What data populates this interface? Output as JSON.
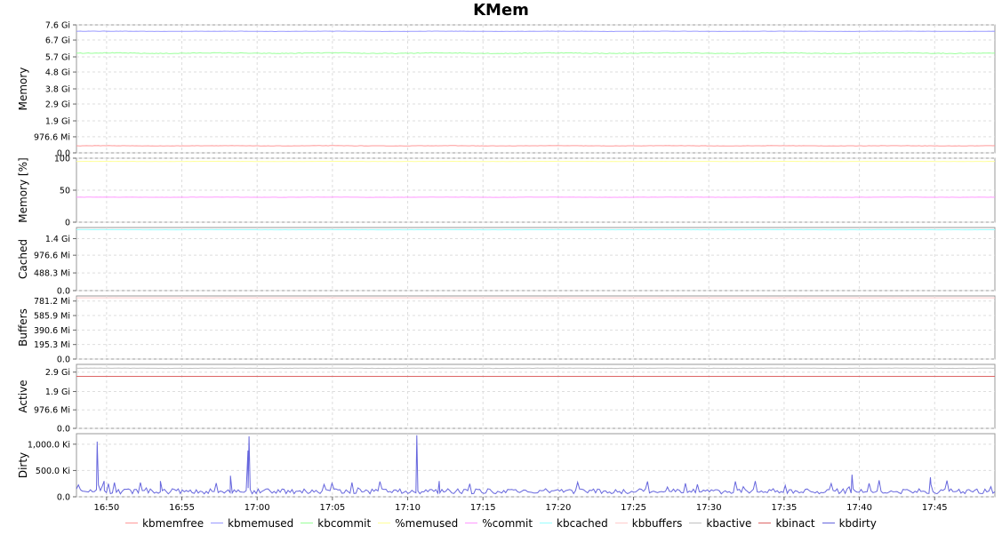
{
  "chart_data": {
    "type": "line",
    "title": "KMem",
    "x_ticks": [
      "16:50",
      "16:55",
      "17:00",
      "17:05",
      "17:10",
      "17:15",
      "17:20",
      "17:25",
      "17:30",
      "17:35",
      "17:40",
      "17:45"
    ],
    "x_range": [
      "16:48",
      "17:49"
    ],
    "grid": true,
    "legend_position": "bottom",
    "legend": [
      {
        "name": "kbmemfree",
        "color": "#ff9999"
      },
      {
        "name": "kbmemused",
        "color": "#9999ff"
      },
      {
        "name": "kbcommit",
        "color": "#99ff99"
      },
      {
        "name": "%memused",
        "color": "#ffff99"
      },
      {
        "name": "%commit",
        "color": "#ff99ff"
      },
      {
        "name": "kbcached",
        "color": "#99ffff"
      },
      {
        "name": "kbbuffers",
        "color": "#ffcccc"
      },
      {
        "name": "kbactive",
        "color": "#c0c0c0"
      },
      {
        "name": "kbinact",
        "color": "#dd6666"
      },
      {
        "name": "kbdirty",
        "color": "#6666dd"
      }
    ],
    "panels": [
      {
        "ylabel": "Memory",
        "ylim": [
          0,
          7.6
        ],
        "unit": "GiB",
        "tick_values": [
          0,
          0.9537,
          1.9,
          2.9,
          3.8,
          4.8,
          5.7,
          6.7,
          7.6
        ],
        "tick_labels": [
          "0.0",
          "976.6 Mi",
          "1.9 Gi",
          "2.9 Gi",
          "3.8 Gi",
          "4.8 Gi",
          "5.7 Gi",
          "6.7 Gi",
          "7.6 Gi"
        ],
        "series": [
          {
            "name": "kbmemused",
            "color": "#9999ff",
            "level": 7.22,
            "jitter": 0.02
          },
          {
            "name": "kbcommit",
            "color": "#99ff99",
            "level": 5.92,
            "jitter": 0.05
          },
          {
            "name": "kbmemfree",
            "color": "#ff9999",
            "level": 0.42,
            "jitter": 0.02
          }
        ]
      },
      {
        "ylabel": "Memory [%]",
        "ylim": [
          0,
          100
        ],
        "unit": "%",
        "tick_values": [
          0,
          50,
          100
        ],
        "tick_labels": [
          "0",
          "50",
          "100"
        ],
        "series": [
          {
            "name": "%memused",
            "color": "#ffff99",
            "level": 95,
            "jitter": 0.3
          },
          {
            "name": "%commit",
            "color": "#ff99ff",
            "level": 39,
            "jitter": 0.4
          }
        ]
      },
      {
        "ylabel": "Cached",
        "ylim": [
          0,
          1.7
        ],
        "unit": "GiB",
        "tick_values": [
          0,
          0.4769,
          0.9537,
          1.4
        ],
        "tick_labels": [
          "0.0",
          "488.3 Mi",
          "976.6 Mi",
          "1.4 Gi"
        ],
        "series": [
          {
            "name": "kbcached",
            "color": "#99ffff",
            "level": 1.64,
            "jitter": 0.005
          }
        ]
      },
      {
        "ylabel": "Buffers",
        "ylim": [
          0,
          850
        ],
        "unit": "MiB",
        "tick_values": [
          0,
          195.3,
          390.6,
          585.9,
          781.2
        ],
        "tick_labels": [
          "0.0",
          "195.3 Mi",
          "390.6 Mi",
          "585.9 Mi",
          "781.2 Mi"
        ],
        "series": [
          {
            "name": "kbbuffers",
            "color": "#ffcccc",
            "level": 825,
            "jitter": 1
          }
        ]
      },
      {
        "ylabel": "Active",
        "ylim": [
          0,
          3.3
        ],
        "unit": "GiB",
        "tick_values": [
          0,
          0.9537,
          1.9,
          2.9
        ],
        "tick_labels": [
          "0.0",
          "976.6 Mi",
          "1.9 Gi",
          "2.9 Gi"
        ],
        "series": [
          {
            "name": "kbactive",
            "color": "#c0c0c0",
            "level": 3.1,
            "jitter": 0.02
          },
          {
            "name": "kbinact",
            "color": "#dd6666",
            "level": 2.68,
            "jitter": 0.0
          }
        ]
      },
      {
        "ylabel": "Dirty",
        "ylim": [
          0,
          1200
        ],
        "unit": "KiB",
        "tick_values": [
          0,
          500,
          1000
        ],
        "tick_labels": [
          "0.0",
          "500.0 Ki",
          "1,000.0 Ki"
        ],
        "series": [
          {
            "name": "kbdirty",
            "color": "#6666dd",
            "level": 90,
            "jitter": 70,
            "spikes": [
              {
                "t": "16:49",
                "v": 1050
              },
              {
                "t": "16:49",
                "v": 300
              },
              {
                "t": "16:53",
                "v": 300
              },
              {
                "t": "16:58",
                "v": 400
              },
              {
                "t": "16:59",
                "v": 1150
              },
              {
                "t": "16:59",
                "v": 880
              },
              {
                "t": "17:10",
                "v": 1170
              },
              {
                "t": "17:12",
                "v": 300
              },
              {
                "t": "17:39",
                "v": 420
              },
              {
                "t": "17:44",
                "v": 370
              }
            ]
          }
        ]
      }
    ]
  }
}
